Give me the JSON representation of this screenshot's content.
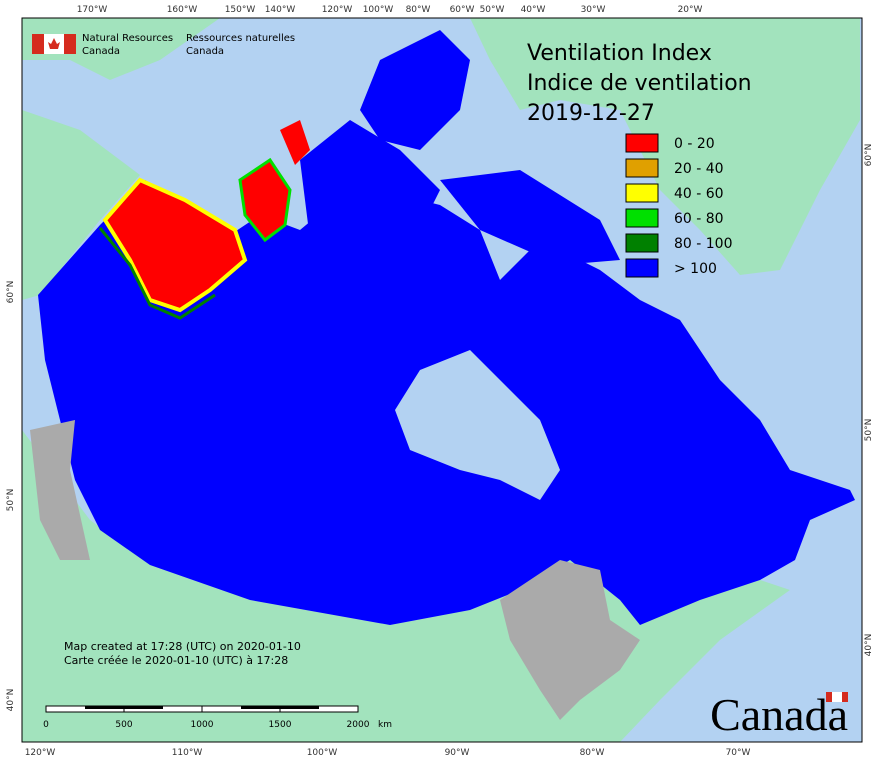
{
  "agency": {
    "en": [
      "Natural Resources",
      "Canada"
    ],
    "fr": [
      "Ressources naturelles",
      "Canada"
    ]
  },
  "title": [
    "Ventilation Index",
    "Indice de ventilation",
    "2019-12-27"
  ],
  "legend": [
    {
      "label": "0 - 20",
      "color": "#ff0000"
    },
    {
      "label": "20 - 40",
      "color": "#e0a000"
    },
    {
      "label": "40 - 60",
      "color": "#ffff00"
    },
    {
      "label": "60 - 80",
      "color": "#00e000"
    },
    {
      "label": "80 - 100",
      "color": "#008000"
    },
    {
      "label": "> 100",
      "color": "#0000ff"
    }
  ],
  "graticule": {
    "top": [
      "170°W",
      "160°W",
      "150°W",
      "140°W",
      "120°W",
      "100°W",
      "80°W",
      "60°W",
      "50°W",
      "40°W",
      "30°W",
      "20°W"
    ],
    "bottom": [
      "120°W",
      "110°W",
      "100°W",
      "90°W",
      "80°W",
      "70°W"
    ],
    "left": [
      "60°N",
      "50°N",
      "40°N"
    ],
    "right": [
      "60°N",
      "50°N",
      "40°N"
    ]
  },
  "credits": [
    "Map created at 17:28 (UTC) on 2020-01-10",
    "Carte créée le 2020-01-10 (UTC) à 17:28"
  ],
  "scale_bar": {
    "labels": [
      "0",
      "500",
      "1000",
      "1500",
      "2000"
    ],
    "unit": "km"
  },
  "wordmark": "Canada"
}
